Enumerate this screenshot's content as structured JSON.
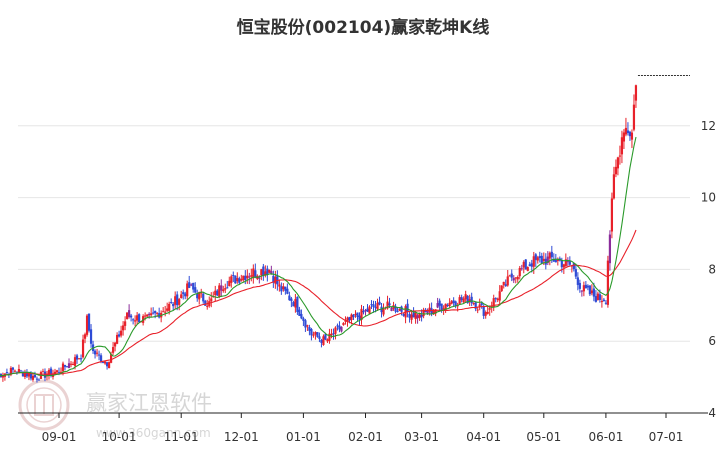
{
  "chart_data": {
    "type": "candlestick",
    "title": "恒宝股份(002104)赢家乾坤K线",
    "x_ticks": [
      "09-01",
      "10-01",
      "11-01",
      "12-01",
      "01-01",
      "02-01",
      "03-01",
      "04-01",
      "05-01",
      "06-01",
      "07-01"
    ],
    "y_ticks": [
      4,
      6,
      8,
      10,
      12
    ],
    "ylim": [
      4,
      14
    ],
    "grid": "horizontal",
    "colors": {
      "up": "#e8212a",
      "down": "#2e4bd6",
      "special": "#8b2c9a",
      "ma_short": "#2a9a2a",
      "ma_long": "#e8212a"
    },
    "segments": [
      {
        "start": "08-01",
        "close": 5.05
      },
      {
        "start": "08-10",
        "close": 5.2
      },
      {
        "start": "08-20",
        "close": 5.0
      },
      {
        "start": "08-31",
        "close": 5.15
      },
      {
        "start": "09-12",
        "close": 5.6
      },
      {
        "start": "09-15",
        "close": 6.6
      },
      {
        "start": "09-18",
        "close": 5.7
      },
      {
        "start": "09-25",
        "close": 5.4
      },
      {
        "start": "10-05",
        "close": 6.7
      },
      {
        "start": "10-15",
        "close": 6.6
      },
      {
        "start": "10-28",
        "close": 7.05
      },
      {
        "start": "11-05",
        "close": 7.5
      },
      {
        "start": "11-15",
        "close": 7.05
      },
      {
        "start": "11-22",
        "close": 7.6
      },
      {
        "start": "12-05",
        "close": 7.9
      },
      {
        "start": "12-15",
        "close": 8.0
      },
      {
        "start": "12-20",
        "close": 7.5
      },
      {
        "start": "12-28",
        "close": 7.05
      },
      {
        "start": "01-05",
        "close": 6.2
      },
      {
        "start": "01-12",
        "close": 6.0
      },
      {
        "start": "01-22",
        "close": 6.5
      },
      {
        "start": "02-05",
        "close": 6.95
      },
      {
        "start": "02-15",
        "close": 6.95
      },
      {
        "start": "02-28",
        "close": 6.7
      },
      {
        "start": "03-15",
        "close": 7.1
      },
      {
        "start": "03-25",
        "close": 7.2
      },
      {
        "start": "04-02",
        "close": 6.8
      },
      {
        "start": "04-05",
        "close": 7.05
      },
      {
        "start": "04-15",
        "close": 7.8
      },
      {
        "start": "04-25",
        "close": 8.2
      },
      {
        "start": "05-05",
        "close": 8.3
      },
      {
        "start": "05-15",
        "close": 8.1
      },
      {
        "start": "05-20",
        "close": 7.45
      },
      {
        "start": "05-28",
        "close": 7.2
      },
      {
        "start": "06-01",
        "close": 7.2
      },
      {
        "start": "06-02",
        "close": 8.3
      },
      {
        "start": "06-05",
        "close": 10.5
      },
      {
        "start": "06-10",
        "close": 12.0
      },
      {
        "start": "06-14",
        "close": 11.8
      },
      {
        "start": "06-16",
        "close": 13.3
      }
    ],
    "last_close_marker": 13.4
  },
  "watermark": {
    "text": "赢家江恩软件",
    "url": "www.360gann.com"
  }
}
